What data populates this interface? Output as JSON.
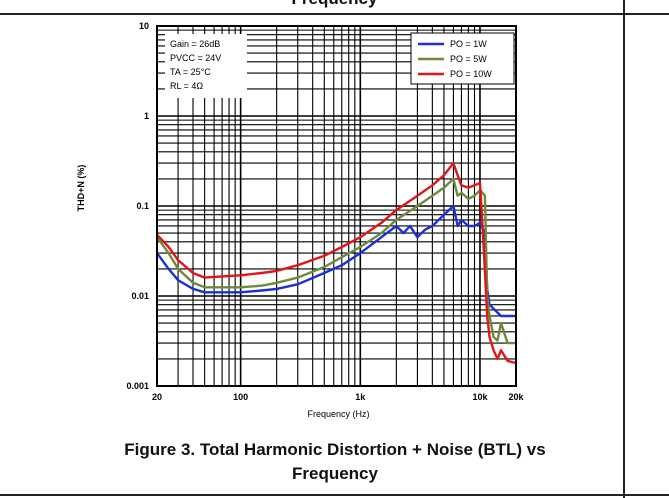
{
  "page": {
    "previous_caption_fragment": "Frequency",
    "caption_line1": "Figure 3. Total Harmonic Distortion + Noise (BTL) vs",
    "caption_line2": "Frequency"
  },
  "chart_data": {
    "type": "line",
    "xlabel": "Frequency (Hz)",
    "ylabel": "THD+N (%)",
    "xscale": "log",
    "yscale": "log",
    "xlim": [
      20,
      20000
    ],
    "ylim": [
      0.001,
      10
    ],
    "x_ticks": [
      {
        "value": 20,
        "label": "20"
      },
      {
        "value": 100,
        "label": "100"
      },
      {
        "value": 1000,
        "label": "1k"
      },
      {
        "value": 10000,
        "label": "10k"
      },
      {
        "value": 20000,
        "label": "20k"
      }
    ],
    "y_ticks": [
      {
        "value": 10,
        "label": "10"
      },
      {
        "value": 1,
        "label": "1"
      },
      {
        "value": 0.1,
        "label": "0.1"
      },
      {
        "value": 0.01,
        "label": "0.01"
      },
      {
        "value": 0.001,
        "label": "0.001"
      }
    ],
    "grid": true,
    "conditions": [
      "Gain = 26dB",
      "PVCC = 24V",
      "TA = 25°C",
      "RL = 4Ω"
    ],
    "legend_position": "top-right",
    "series": [
      {
        "name": "PO = 1W",
        "color": "#1a2fd6",
        "x": [
          20,
          25,
          30,
          40,
          50,
          70,
          100,
          150,
          200,
          300,
          500,
          700,
          1000,
          1500,
          2000,
          2300,
          2600,
          3000,
          3500,
          4000,
          5000,
          6000,
          6500,
          7000,
          8000,
          9000,
          10000,
          11000,
          11500,
          12000,
          15000,
          20000
        ],
        "y": [
          0.03,
          0.02,
          0.015,
          0.012,
          0.011,
          0.011,
          0.011,
          0.0115,
          0.012,
          0.0135,
          0.018,
          0.022,
          0.03,
          0.045,
          0.06,
          0.05,
          0.06,
          0.045,
          0.055,
          0.06,
          0.08,
          0.1,
          0.06,
          0.07,
          0.06,
          0.06,
          0.065,
          0.05,
          0.012,
          0.008,
          0.006,
          0.006
        ]
      },
      {
        "name": "PO = 5W",
        "color": "#6e8a3a",
        "x": [
          20,
          25,
          30,
          40,
          50,
          70,
          100,
          150,
          200,
          300,
          500,
          700,
          1000,
          1500,
          2000,
          3000,
          4000,
          5000,
          6000,
          6500,
          7000,
          8000,
          9000,
          10000,
          11000,
          11500,
          12000,
          13000,
          14000,
          15000,
          17000,
          20000
        ],
        "y": [
          0.045,
          0.03,
          0.02,
          0.014,
          0.0125,
          0.0125,
          0.0125,
          0.013,
          0.014,
          0.016,
          0.021,
          0.027,
          0.035,
          0.05,
          0.07,
          0.1,
          0.13,
          0.16,
          0.2,
          0.13,
          0.14,
          0.12,
          0.13,
          0.15,
          0.13,
          0.01,
          0.006,
          0.0035,
          0.0032,
          0.005,
          0.003,
          0.003
        ]
      },
      {
        "name": "PO = 10W",
        "color": "#e0151a",
        "x": [
          20,
          25,
          30,
          40,
          50,
          70,
          100,
          150,
          200,
          300,
          500,
          700,
          1000,
          1500,
          2000,
          3000,
          4000,
          5000,
          6000,
          6500,
          7000,
          8000,
          9000,
          10000,
          10800,
          11500,
          12000,
          13000,
          14000,
          15000,
          17000,
          20000
        ],
        "y": [
          0.048,
          0.035,
          0.025,
          0.018,
          0.016,
          0.0165,
          0.017,
          0.018,
          0.019,
          0.022,
          0.028,
          0.035,
          0.045,
          0.065,
          0.09,
          0.13,
          0.17,
          0.22,
          0.3,
          0.22,
          0.17,
          0.16,
          0.17,
          0.18,
          0.03,
          0.006,
          0.0035,
          0.0025,
          0.002,
          0.0025,
          0.0019,
          0.0018
        ]
      }
    ]
  }
}
